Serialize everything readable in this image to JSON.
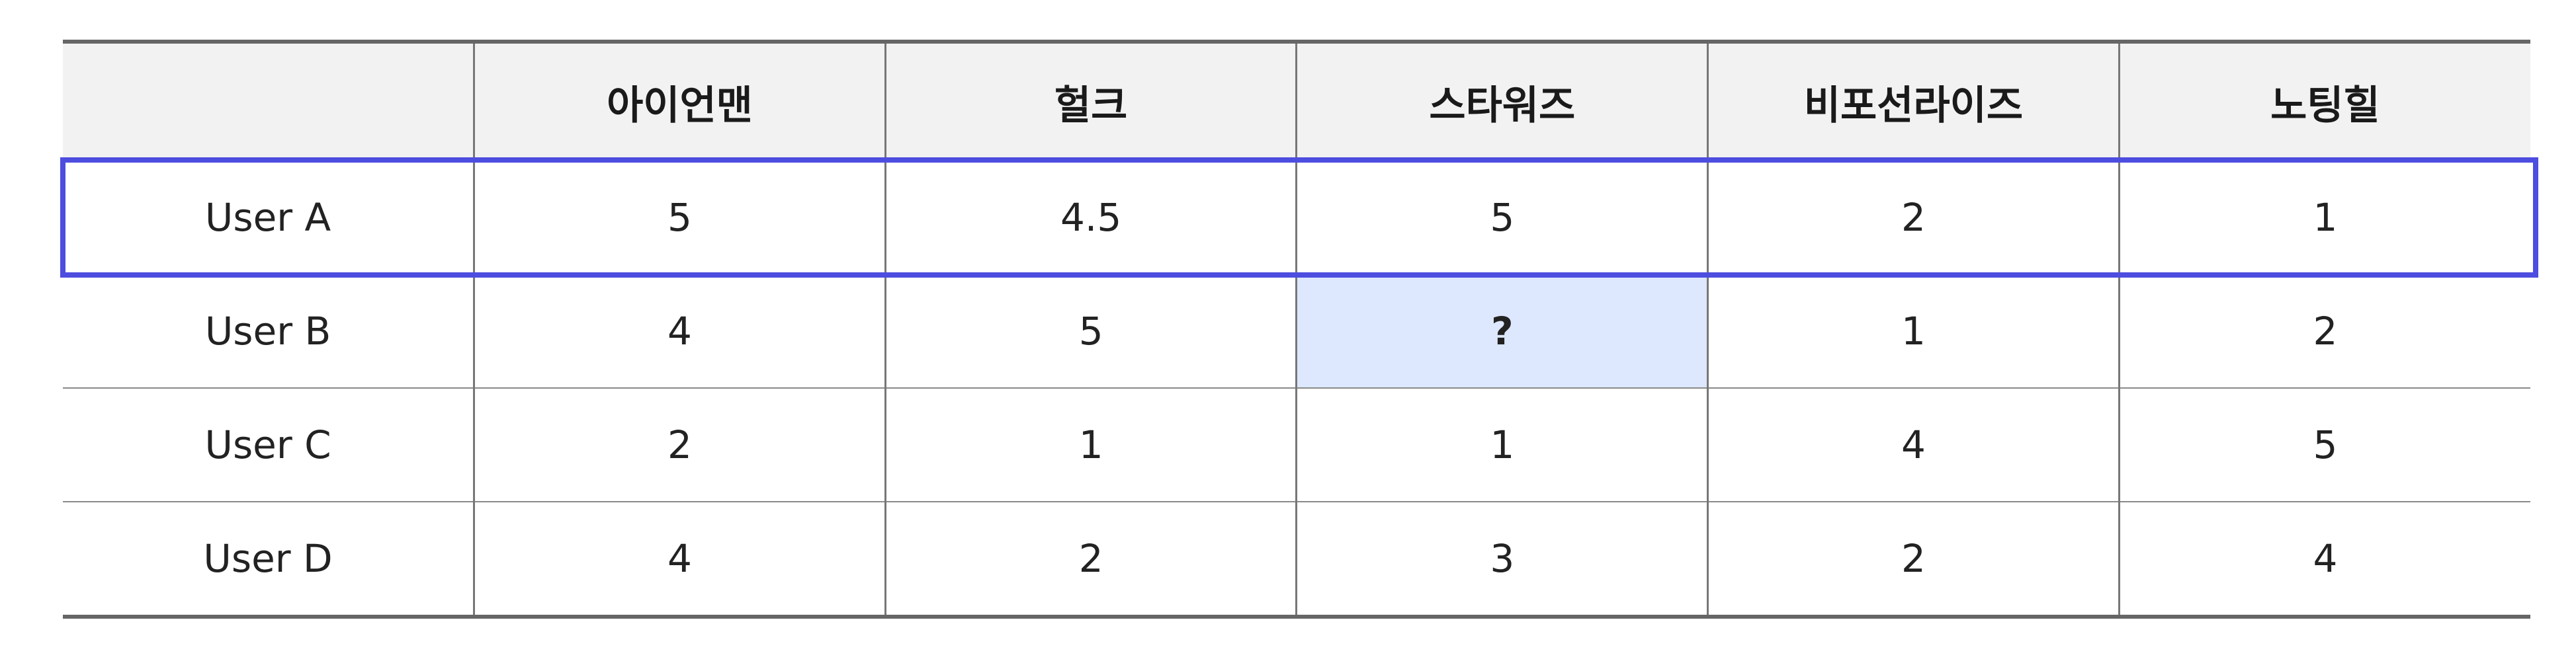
{
  "table": {
    "corner_label": "",
    "columns": [
      "아이언맨",
      "헐크",
      "스타워즈",
      "비포선라이즈",
      "노팅힐"
    ],
    "rows": [
      {
        "user": "User A",
        "values": [
          "5",
          "4.5",
          "5",
          "2",
          "1"
        ]
      },
      {
        "user": "User B",
        "values": [
          "4",
          "5",
          "?",
          "1",
          "2"
        ]
      },
      {
        "user": "User C",
        "values": [
          "2",
          "1",
          "1",
          "4",
          "5"
        ]
      },
      {
        "user": "User D",
        "values": [
          "4",
          "2",
          "3",
          "2",
          "4"
        ]
      }
    ]
  },
  "colors": {
    "highlight_border": "#4d4de0",
    "unknown_cell_bg": "#dde7fd",
    "header_bg": "#f2f2f2"
  }
}
